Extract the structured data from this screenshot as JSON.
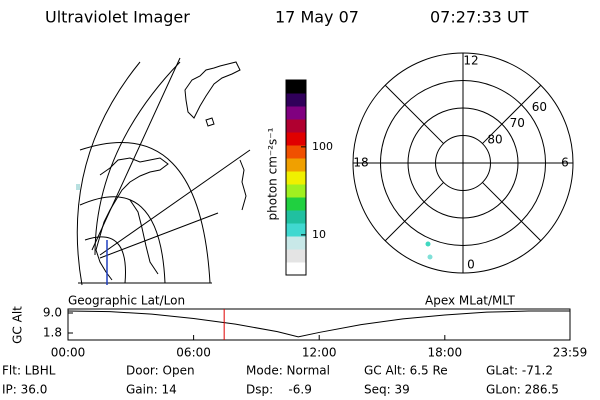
{
  "header": {
    "title": "Ultraviolet Imager",
    "date": "17 May 07",
    "time": "07:27:33 UT"
  },
  "colorbar": {
    "label": "photon cm⁻²s⁻¹",
    "scale": "log",
    "ylim": [
      3.5,
      575
    ],
    "yticks": [
      10,
      100
    ],
    "colors": [
      "#ffffff",
      "#e4e4e4",
      "#c8e8e8",
      "#40d8d0",
      "#20c0a0",
      "#20d040",
      "#a0f020",
      "#f0f000",
      "#f0a000",
      "#f05000",
      "#e00000",
      "#b00030",
      "#800080",
      "#30005a",
      "#000000"
    ]
  },
  "polar_plot": {
    "rlim": [
      90,
      50
    ],
    "mlt_ticks": [
      12,
      6,
      0,
      18
    ],
    "lat_rings": [
      80,
      70,
      60
    ]
  },
  "panel_labels": {
    "left": "Geographic Lat/Lon",
    "right": "Apex MLat/MLT"
  },
  "orbit": {
    "ylabel": "GC Alt",
    "ylim": [
      -0.72,
      10.44
    ],
    "yticks": [
      {
        "value": 9,
        "label": "9.0"
      },
      {
        "value": 1.8,
        "label": "1.8"
      }
    ],
    "xlim": [
      0,
      23.98
    ],
    "xticks": [
      {
        "value": 0,
        "label": "00:00"
      },
      {
        "value": 6,
        "label": "06:00"
      },
      {
        "value": 12,
        "label": "12:00"
      },
      {
        "value": 18,
        "label": "18:00"
      },
      {
        "value": 23.98,
        "label": "23:59"
      }
    ],
    "x": [
      0,
      2,
      4,
      6,
      8,
      10,
      11,
      12,
      14,
      16,
      18,
      20,
      22,
      23.98
    ],
    "values": [
      9.7,
      9.5,
      8.6,
      7.0,
      5.0,
      2.3,
      0.4,
      2.0,
      4.8,
      6.9,
      8.3,
      9.3,
      9.7,
      9.7
    ],
    "time_marker": 7.46,
    "marker_color": "#e00000"
  },
  "status": {
    "rows": [
      [
        "Flt: LBHL",
        "Door: Open",
        "Mode: Normal",
        "GC Alt: 6.5 Re",
        "GLat: -71.2"
      ],
      [
        "IP: 36.0",
        "Gain: 14",
        "Dsp:    -6.9",
        "Seq: 39",
        "GLon: 286.5"
      ]
    ]
  }
}
